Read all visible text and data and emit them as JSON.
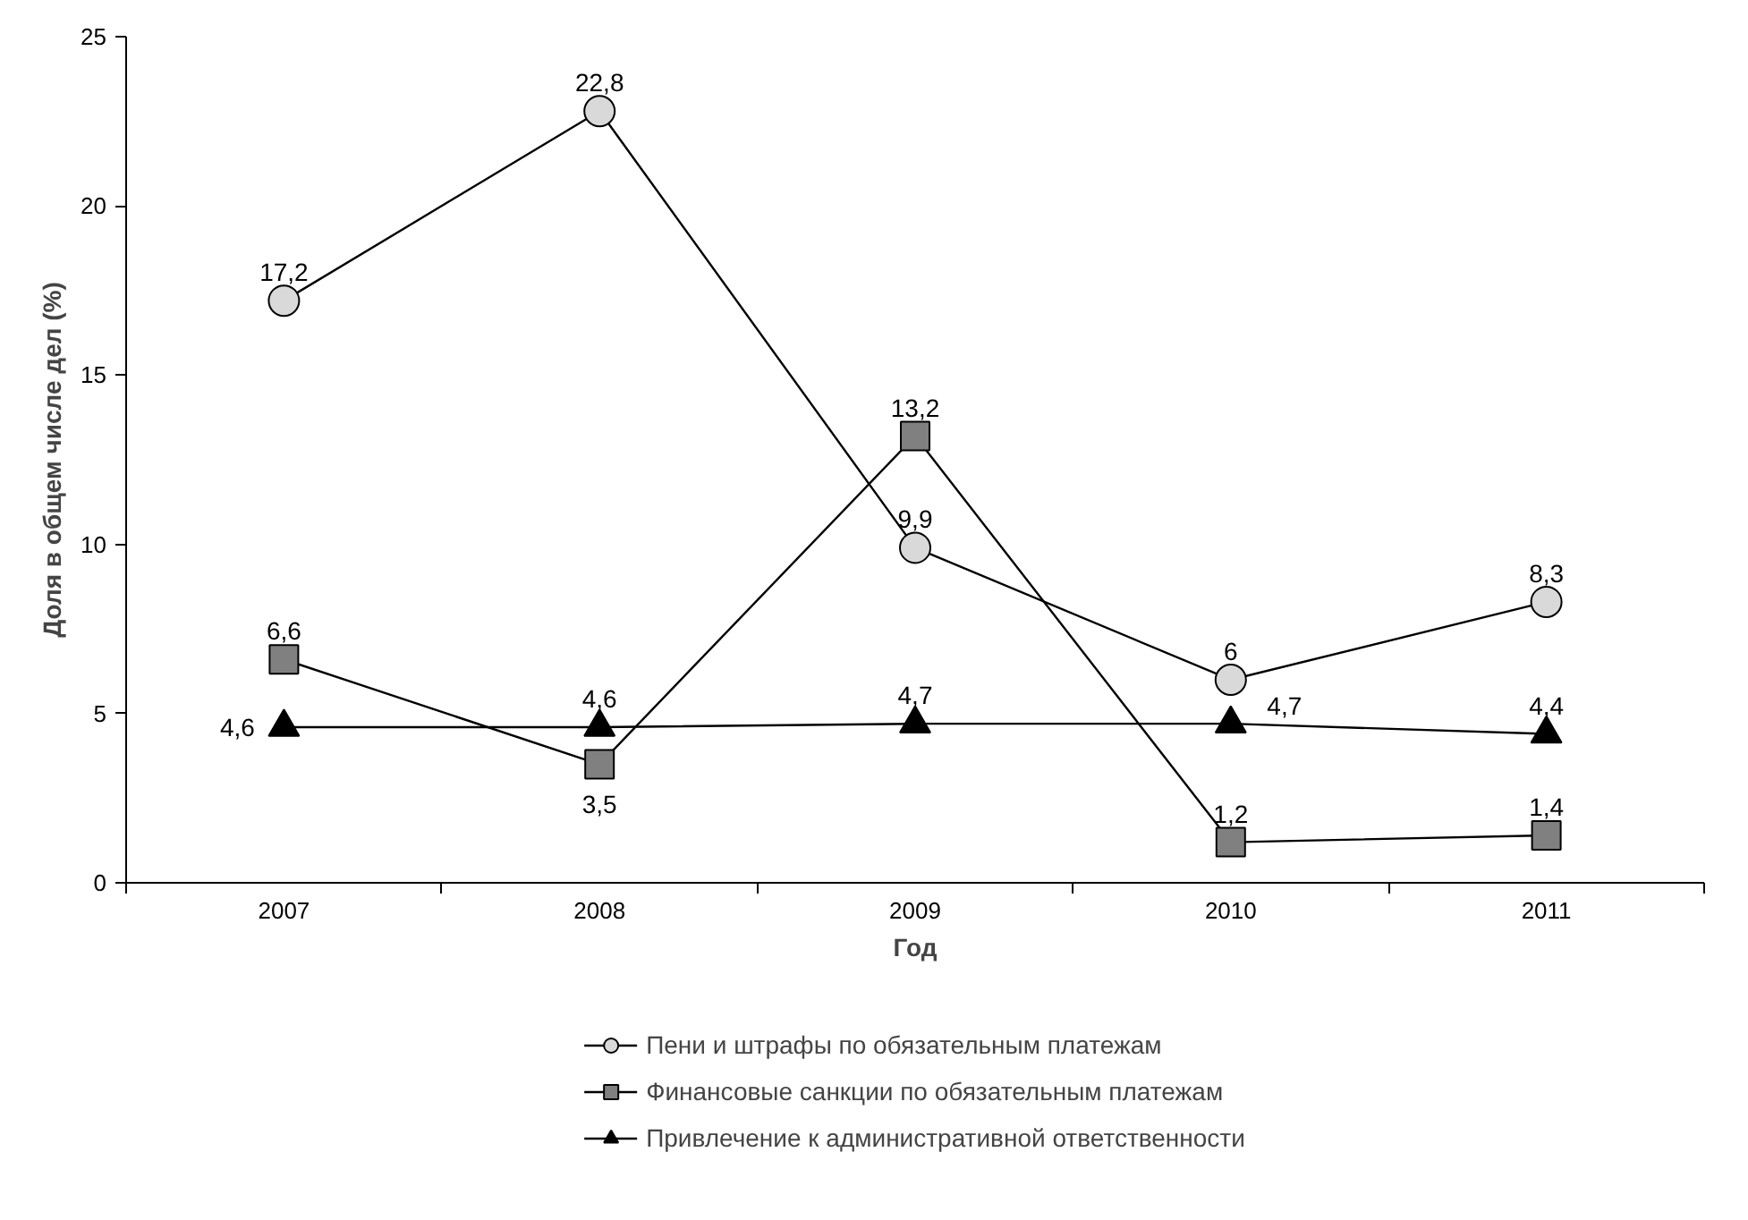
{
  "chart_data": {
    "type": "line",
    "xlabel": "Год",
    "ylabel": "Доля в общем числе дел (%)",
    "categories": [
      "2007",
      "2008",
      "2009",
      "2010",
      "2011"
    ],
    "series": [
      {
        "name": "Пени и штрафы по обязательным платежам",
        "color": "#d9d9d9",
        "marker": "circle",
        "values": [
          17.2,
          22.8,
          9.9,
          6,
          8.3
        ],
        "value_labels": [
          "17,2",
          "22,8",
          "9,9",
          "6",
          "8,3"
        ]
      },
      {
        "name": "Финансовые санкции по обязательным платежам",
        "color": "#808080",
        "marker": "square",
        "values": [
          6.6,
          3.5,
          13.2,
          1.2,
          1.4
        ],
        "value_labels": [
          "6,6",
          "3,5",
          "13,2",
          "1,2",
          "1,4"
        ]
      },
      {
        "name": "Привлечение к административной ответственности",
        "color": "#000000",
        "marker": "triangle",
        "values": [
          4.6,
          4.6,
          4.7,
          4.7,
          4.4
        ],
        "value_labels": [
          "4,6",
          "4,6",
          "4,7",
          "4,7",
          "4,4"
        ]
      }
    ],
    "ylim": [
      0,
      25
    ],
    "yticks": [
      0,
      5,
      10,
      15,
      20,
      25
    ],
    "grid": false,
    "legend": "bottom",
    "line_style": "solid"
  }
}
